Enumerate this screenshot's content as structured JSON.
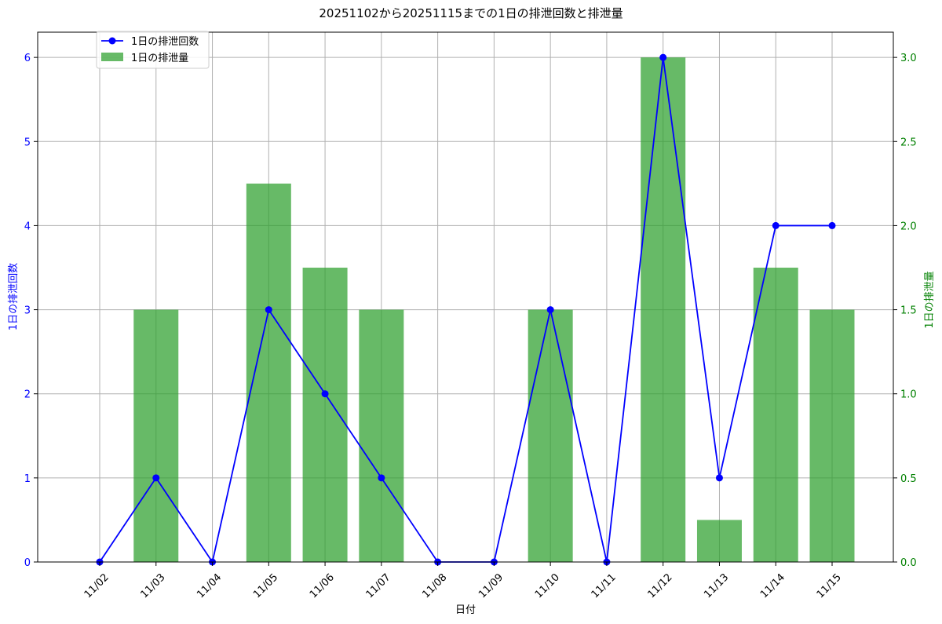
{
  "chart_data": {
    "type": "bar+line",
    "title": "20251102から20251115までの1日の排泄回数と排泄量",
    "xlabel": "日付",
    "ylabel_left": "1日の排泄回数",
    "ylabel_right": "1日の排泄量",
    "categories": [
      "11/02",
      "11/03",
      "11/04",
      "11/05",
      "11/06",
      "11/07",
      "11/08",
      "11/09",
      "11/10",
      "11/11",
      "11/12",
      "11/13",
      "11/14",
      "11/15"
    ],
    "series": [
      {
        "name": "1日の排泄回数",
        "type": "line",
        "axis": "left",
        "color": "#0000ff",
        "values": [
          0,
          1,
          0,
          3,
          2,
          1,
          0,
          0,
          3,
          0,
          6,
          1,
          4,
          4
        ]
      },
      {
        "name": "1日の排泄量",
        "type": "bar",
        "axis": "right",
        "color": "#2ca02c",
        "values": [
          0,
          1.5,
          0,
          2.25,
          1.75,
          1.5,
          0,
          0,
          1.5,
          0,
          3.0,
          0.25,
          1.75,
          1.5
        ]
      }
    ],
    "ylim_left": [
      0,
      6.3
    ],
    "ylim_right": [
      0,
      3.15
    ],
    "yticks_left": [
      0,
      1,
      2,
      3,
      4,
      5,
      6
    ],
    "yticks_right": [
      "0.0",
      "0.5",
      "1.0",
      "1.5",
      "2.0",
      "2.5",
      "3.0"
    ],
    "grid": true,
    "legend_position": "top-left"
  }
}
